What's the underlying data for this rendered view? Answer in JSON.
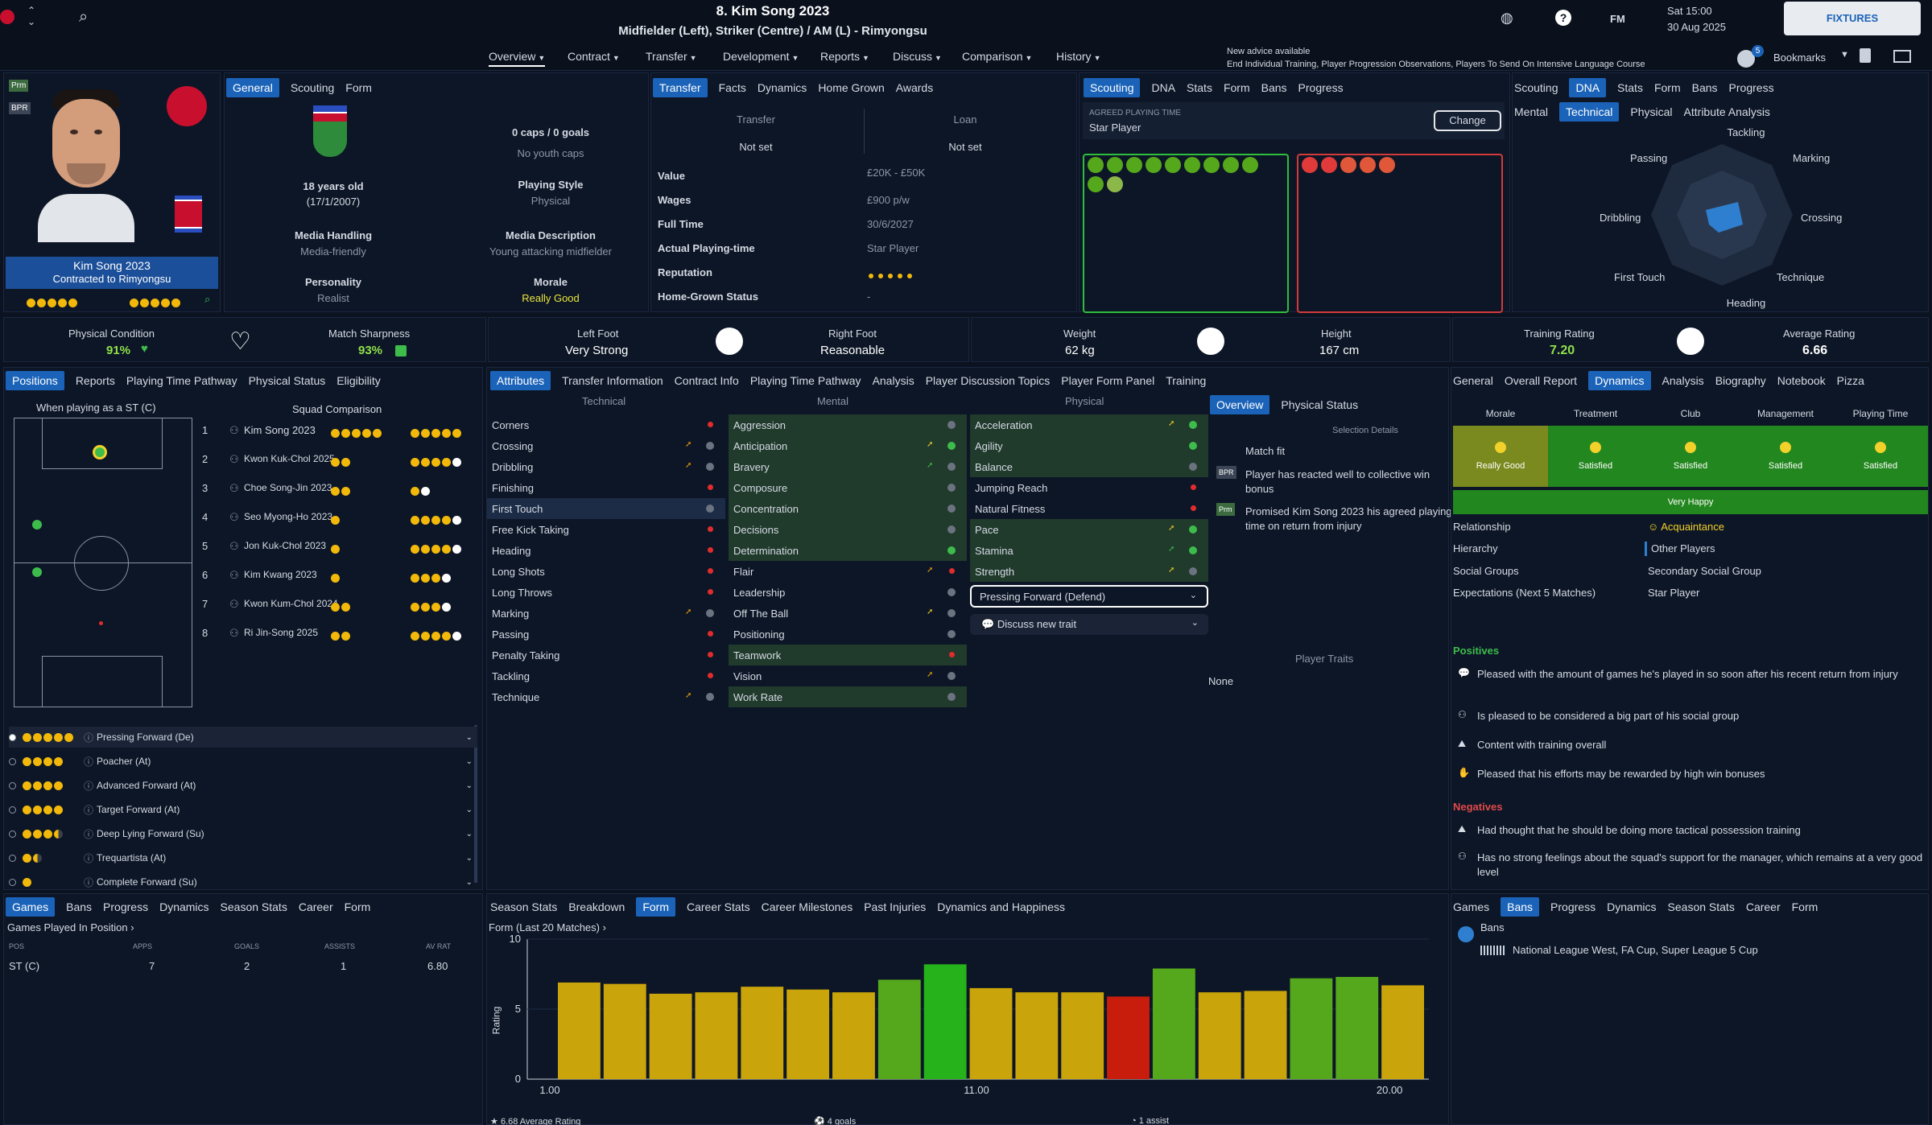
{
  "header": {
    "title": "8. Kim Song 2023",
    "subtitle": "Midfielder (Left), Striker (Centre) / AM (L) - Rimyongsu",
    "date_time": "Sat 15:00",
    "date": "30 Aug 2025",
    "fixtures": "FIXTURES",
    "fm": "FM",
    "advice_title": "New advice available",
    "advice_text": "End Individual Training, Player Progression Observations, Players To Send On Intensive Language Course",
    "bookmarks": "Bookmarks",
    "bookmarks_count": "5"
  },
  "nav": [
    "Overview",
    "Contract",
    "Transfer",
    "Development",
    "Reports",
    "Discuss",
    "Comparison",
    "History"
  ],
  "profile": {
    "name": "Kim Song 2023",
    "club": "Contracted to Rimyongsu",
    "badge1": "Prm",
    "badge2": "BPR"
  },
  "general": {
    "tabs": [
      "General",
      "Scouting",
      "Form"
    ],
    "caps": "0 caps / 0 goals",
    "youth": "No youth caps",
    "age": "18 years old",
    "dob": "(17/1/2007)",
    "style_label": "Playing Style",
    "style": "Physical",
    "media_label": "Media Handling",
    "media": "Media-friendly",
    "desc_label": "Media Description",
    "desc": "Young attacking midfielder",
    "pers_label": "Personality",
    "pers": "Realist",
    "morale_label": "Morale",
    "morale": "Really Good"
  },
  "transfer": {
    "tabs": [
      "Transfer",
      "Facts",
      "Dynamics",
      "Home Grown",
      "Awards"
    ],
    "transfer_label": "Transfer",
    "loan_label": "Loan",
    "transfer_val": "Not set",
    "loan_val": "Not set",
    "rows": [
      {
        "k": "Value",
        "v": "£20K - £50K"
      },
      {
        "k": "Wages",
        "v": "£900 p/w"
      },
      {
        "k": "Full Time",
        "v": "30/6/2027"
      },
      {
        "k": "Actual Playing-time",
        "v": "Star Player"
      },
      {
        "k": "Reputation",
        "v": ""
      },
      {
        "k": "Home-Grown Status",
        "v": "-"
      }
    ]
  },
  "scouting": {
    "tabs": [
      "Scouting",
      "DNA",
      "Stats",
      "Form",
      "Bans",
      "Progress"
    ],
    "apt_label": "AGREED PLAYING TIME",
    "apt": "Star Player",
    "change": "Change"
  },
  "dna": {
    "tabs": [
      "Scouting",
      "DNA",
      "Stats",
      "Form",
      "Bans",
      "Progress"
    ],
    "subtabs": [
      "Mental",
      "Technical",
      "Physical",
      "Attribute Analysis"
    ],
    "axes": [
      "Tackling",
      "Marking",
      "Crossing",
      "Technique",
      "Heading",
      "First Touch",
      "Dribbling",
      "Passing"
    ]
  },
  "stats": {
    "pc_label": "Physical Condition",
    "pc": "91%",
    "ms_label": "Match Sharpness",
    "ms": "93%",
    "lf_label": "Left Foot",
    "lf": "Very Strong",
    "rf_label": "Right Foot",
    "rf": "Reasonable",
    "w_label": "Weight",
    "w": "62 kg",
    "h_label": "Height",
    "h": "167 cm",
    "tr_label": "Training Rating",
    "tr": "7.20",
    "ar_label": "Average Rating",
    "ar": "6.66"
  },
  "positions": {
    "tabs": [
      "Positions",
      "Reports",
      "Playing Time Pathway",
      "Physical Status",
      "Eligibility"
    ],
    "when": "When playing as a ST (C)",
    "squad": "Squad Comparison",
    "players": [
      {
        "n": "1",
        "name": "Kim Song 2023"
      },
      {
        "n": "2",
        "name": "Kwon Kuk-Chol 2025"
      },
      {
        "n": "3",
        "name": "Choe Song-Jin 2023"
      },
      {
        "n": "4",
        "name": "Seo Myong-Ho 2023"
      },
      {
        "n": "5",
        "name": "Jon Kuk-Chol 2023"
      },
      {
        "n": "6",
        "name": "Kim Kwang 2023"
      },
      {
        "n": "7",
        "name": "Kwon Kum-Chol 2024"
      },
      {
        "n": "8",
        "name": "Ri Jin-Song 2025"
      }
    ],
    "roles": [
      "Pressing Forward (De)",
      "Poacher (At)",
      "Advanced Forward (At)",
      "Target Forward (At)",
      "Deep Lying Forward (Su)",
      "Trequartista (At)",
      "Complete Forward (Su)"
    ]
  },
  "attributes": {
    "tabs": [
      "Attributes",
      "Transfer Information",
      "Contract Info",
      "Playing Time Pathway",
      "Analysis",
      "Player Discussion Topics",
      "Player Form Panel",
      "Training"
    ],
    "h_tech": "Technical",
    "h_ment": "Mental",
    "h_phys": "Physical",
    "technical": [
      "Corners",
      "Crossing",
      "Dribbling",
      "Finishing",
      "First Touch",
      "Free Kick Taking",
      "Heading",
      "Long Shots",
      "Long Throws",
      "Marking",
      "Passing",
      "Penalty Taking",
      "Tackling",
      "Technique"
    ],
    "mental": [
      "Aggression",
      "Anticipation",
      "Bravery",
      "Composure",
      "Concentration",
      "Decisions",
      "Determination",
      "Flair",
      "Leadership",
      "Off The Ball",
      "Positioning",
      "Teamwork",
      "Vision",
      "Work Rate"
    ],
    "physical": [
      "Acceleration",
      "Agility",
      "Balance",
      "Jumping Reach",
      "Natural Fitness",
      "Pace",
      "Stamina",
      "Strength"
    ],
    "role_select": "Pressing Forward (Defend)",
    "trait_btn": "Discuss new trait"
  },
  "overview": {
    "tabs": [
      "Overview",
      "Physical Status"
    ],
    "sel": "Selection Details",
    "match_fit": "Match fit",
    "note1": "Player has reacted well to collective win bonus",
    "note2": "Promised Kim Song 2023 his agreed playing time on return from injury",
    "traits_label": "Player Traits",
    "traits": "None",
    "b1": "BPR",
    "b2": "Prm"
  },
  "dynamics": {
    "tabs": [
      "General",
      "Overall Report",
      "Dynamics",
      "Analysis",
      "Biography",
      "Notebook",
      "Pizza"
    ],
    "cols": [
      "Morale",
      "Treatment",
      "Club",
      "Management",
      "Playing Time"
    ],
    "vals": [
      "Really Good",
      "Satisfied",
      "Satisfied",
      "Satisfied",
      "Satisfied"
    ],
    "very_happy": "Very Happy",
    "rel_label": "Relationship",
    "rel": "Acquaintance",
    "hier_label": "Hierarchy",
    "hier": "Other Players",
    "sg_label": "Social Groups",
    "sg": "Secondary Social Group",
    "exp_label": "Expectations (Next 5 Matches)",
    "exp": "Star Player",
    "pos_label": "Positives",
    "positives": [
      "Pleased with the amount of games he's played in so soon after his recent return from injury",
      "Is pleased to be considered a big part of his social group",
      "Content with training overall",
      "Pleased that his efforts may be rewarded by high win bonuses"
    ],
    "neg_label": "Negatives",
    "negatives": [
      "Had thought that he should be doing more tactical possession training",
      "Has no strong feelings about the squad's support for the manager, which remains at a very good level"
    ]
  },
  "games": {
    "tabs": [
      "Games",
      "Bans",
      "Progress",
      "Dynamics",
      "Season Stats",
      "Career",
      "Form"
    ],
    "sub": "Games Played In Position",
    "cols": [
      "POS",
      "APPS",
      "GOALS",
      "ASSISTS",
      "AV RAT"
    ],
    "row": [
      "ST (C)",
      "7",
      "2",
      "1",
      "6.80"
    ]
  },
  "form": {
    "tabs": [
      "Season Stats",
      "Breakdown",
      "Form",
      "Career Stats",
      "Career Milestones",
      "Past Injuries",
      "Dynamics and Happiness"
    ],
    "title": "Form (Last 20 Matches)",
    "ylabel": "Rating",
    "footer": [
      "6.68 Average Rating",
      "4 goals",
      "1 assist"
    ]
  },
  "chart_data": {
    "type": "bar",
    "x_ticks": [
      "1.00",
      "11.00",
      "20.00"
    ],
    "y_ticks": [
      "0",
      "5",
      "10"
    ],
    "ylim": [
      0,
      10
    ],
    "values": [
      6.9,
      6.8,
      6.1,
      6.2,
      6.6,
      6.4,
      6.2,
      7.1,
      8.2,
      6.5,
      6.2,
      6.2,
      5.9,
      7.9,
      6.2,
      6.3,
      7.2,
      7.3,
      6.7
    ],
    "colors": [
      "#c9a40a",
      "#c9a40a",
      "#c9a40a",
      "#c9a40a",
      "#c9a40a",
      "#c9a40a",
      "#c9a40a",
      "#55a81b",
      "#26b21a",
      "#c9a40a",
      "#c9a40a",
      "#c9a40a",
      "#c81d0d",
      "#55a81b",
      "#c9a40a",
      "#c9a40a",
      "#55a81b",
      "#55a81b",
      "#c9a40a"
    ]
  },
  "bans": {
    "tabs": [
      "Games",
      "Bans",
      "Progress",
      "Dynamics",
      "Season Stats",
      "Career",
      "Form"
    ],
    "title": "Bans",
    "text": "National League West, FA Cup, Super League 5 Cup"
  }
}
